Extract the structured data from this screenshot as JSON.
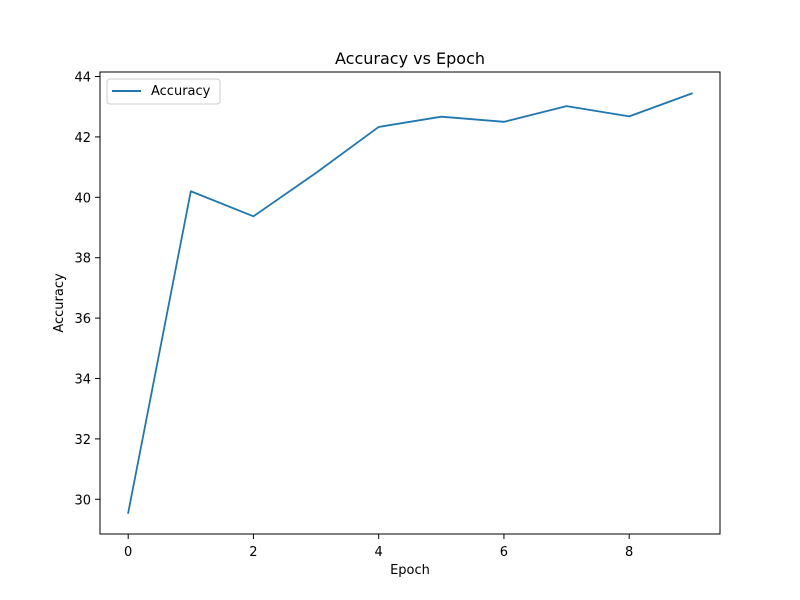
{
  "chart_data": {
    "type": "line",
    "title": "Accuracy vs Epoch",
    "xlabel": "Epoch",
    "ylabel": "Accuracy",
    "xlim": [
      -0.45,
      9.45
    ],
    "ylim": [
      28.85,
      44.15
    ],
    "xticks": [
      0,
      2,
      4,
      6,
      8
    ],
    "yticks": [
      30,
      32,
      34,
      36,
      38,
      40,
      42,
      44
    ],
    "grid": false,
    "legend": "upper-left",
    "series": [
      {
        "name": "Accuracy",
        "color": "#1f77b4",
        "x": [
          0,
          1,
          2,
          3,
          4,
          5,
          6,
          7,
          8,
          9
        ],
        "y": [
          29.55,
          40.2,
          39.37,
          40.81,
          42.33,
          42.67,
          42.5,
          43.02,
          42.68,
          43.44
        ]
      }
    ]
  }
}
